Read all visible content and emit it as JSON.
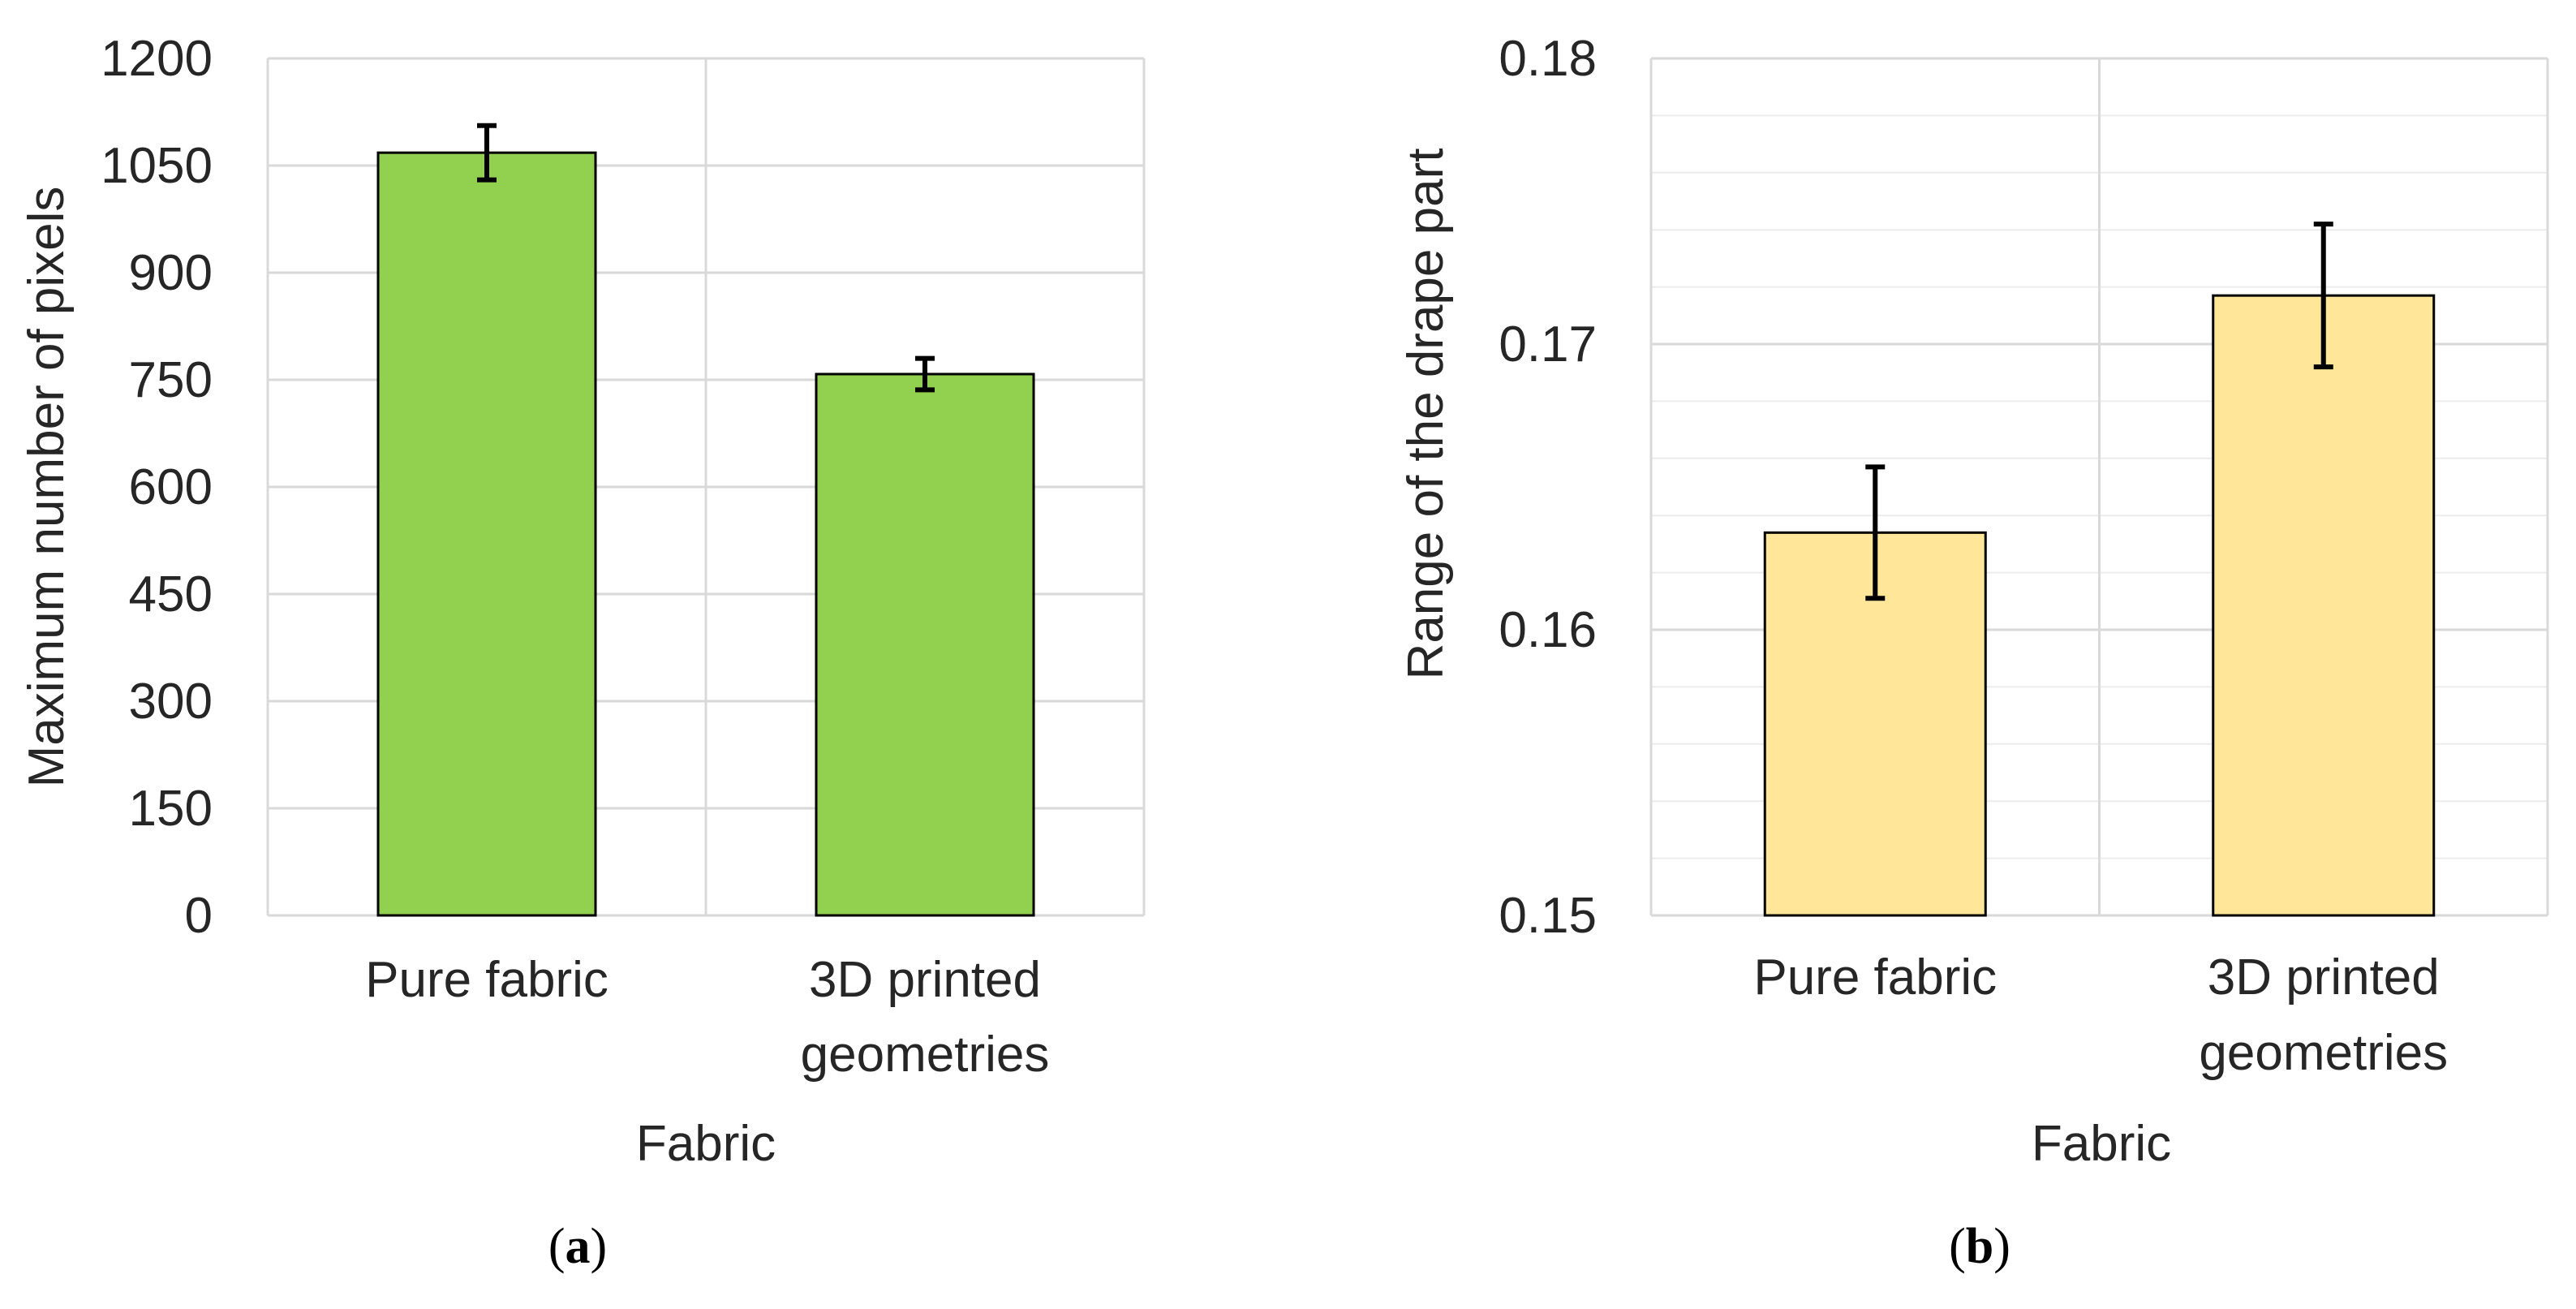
{
  "chart_data": [
    {
      "type": "bar",
      "panel_label": "a",
      "title": "",
      "xlabel": "Fabric",
      "ylabel": "Maximum number of pixels",
      "categories": [
        "Pure fabric",
        "3D printed geometries"
      ],
      "category_lines": [
        [
          "Pure fabric"
        ],
        [
          "3D printed",
          "geometries"
        ]
      ],
      "values": [
        1068,
        758
      ],
      "errors": [
        38,
        22
      ],
      "ylim": [
        0,
        1200
      ],
      "yticks": [
        0,
        150,
        300,
        450,
        600,
        750,
        900,
        1050,
        1200
      ],
      "ytick_labels": [
        "0",
        "150",
        "300",
        "450",
        "600",
        "750",
        "900",
        "1050",
        "1200"
      ],
      "grid": true,
      "minor_grid": false,
      "bar_color": "#92D050"
    },
    {
      "type": "bar",
      "panel_label": "b",
      "title": "",
      "xlabel": "Fabric",
      "ylabel": "Range of the drape part",
      "categories": [
        "Pure fabric",
        "3D printed geometries"
      ],
      "category_lines": [
        [
          "Pure fabric"
        ],
        [
          "3D printed",
          "geometries"
        ]
      ],
      "values": [
        0.1634,
        0.1717
      ],
      "errors": [
        0.0023,
        0.0025
      ],
      "ylim": [
        0.15,
        0.18
      ],
      "yticks": [
        0.15,
        0.16,
        0.17,
        0.18
      ],
      "ytick_labels": [
        "0.15",
        "0.16",
        "0.17",
        "0.18"
      ],
      "grid": true,
      "minor_grid": true,
      "bar_color": "#FFE699"
    }
  ]
}
